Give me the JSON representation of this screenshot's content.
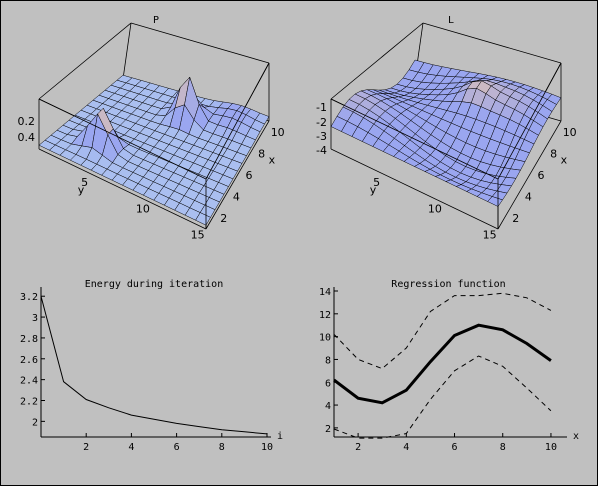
{
  "chart_data": [
    {
      "type": "surface",
      "title": "P",
      "xlabel": "x",
      "ylabel": "y",
      "x_ticks": [
        "2",
        "4",
        "6",
        "8",
        "10"
      ],
      "y_ticks": [
        "5",
        "10",
        "15"
      ],
      "z_ticks": [
        "0.2",
        "0.4"
      ],
      "x_range": [
        1,
        11
      ],
      "y_range": [
        1,
        15
      ],
      "colors": {
        "low": "#9aa6f0",
        "peak": "#f2c8a0",
        "edge": "#c8f0f0"
      }
    },
    {
      "type": "surface",
      "title": "L",
      "xlabel": "x",
      "ylabel": "y",
      "x_ticks": [
        "2",
        "4",
        "6",
        "8",
        "10"
      ],
      "y_ticks": [
        "5",
        "10",
        "15"
      ],
      "z_ticks": [
        "-1",
        "-2",
        "-3",
        "-4"
      ],
      "x_range": [
        1,
        11
      ],
      "y_range": [
        1,
        15
      ],
      "colors": {
        "low": "#9aa6f0",
        "peak": "#f2c8a0",
        "edge": "#c8f0f0"
      }
    },
    {
      "type": "line",
      "title": "Energy during iteration",
      "xlabel": "i",
      "ylabel": "",
      "xlim": [
        0,
        10
      ],
      "ylim": [
        1.85,
        3.25
      ],
      "x_ticks": [
        2,
        4,
        6,
        8,
        10
      ],
      "y_ticks": [
        2,
        2.2,
        2.4,
        2.6,
        2.8,
        3,
        3.2
      ],
      "x": [
        0,
        1,
        2,
        3,
        4,
        5,
        6,
        7,
        8,
        9,
        10
      ],
      "values": [
        3.2,
        2.38,
        2.21,
        2.13,
        2.06,
        2.02,
        1.98,
        1.95,
        1.92,
        1.9,
        1.88
      ]
    },
    {
      "type": "line",
      "title": "Regression function",
      "xlabel": "x",
      "ylabel": "",
      "xlim": [
        1,
        10.5
      ],
      "ylim": [
        1.2,
        14
      ],
      "x_ticks": [
        2,
        4,
        6,
        8,
        10
      ],
      "y_ticks": [
        2,
        4,
        6,
        8,
        10,
        12,
        14
      ],
      "x": [
        1,
        2,
        3,
        4,
        5,
        6,
        7,
        8,
        9,
        10
      ],
      "series": [
        {
          "style": "solid-thick",
          "values": [
            6.2,
            4.6,
            4.2,
            5.3,
            7.8,
            10.1,
            11.0,
            10.6,
            9.4,
            7.9
          ]
        },
        {
          "style": "dashed",
          "values": [
            10.2,
            8.0,
            7.2,
            9.0,
            12.2,
            13.6,
            13.6,
            13.8,
            13.4,
            12.3
          ]
        },
        {
          "style": "dashed",
          "values": [
            1.9,
            1.1,
            1.1,
            1.5,
            4.5,
            7.0,
            8.3,
            7.4,
            5.5,
            3.5
          ]
        }
      ]
    }
  ]
}
